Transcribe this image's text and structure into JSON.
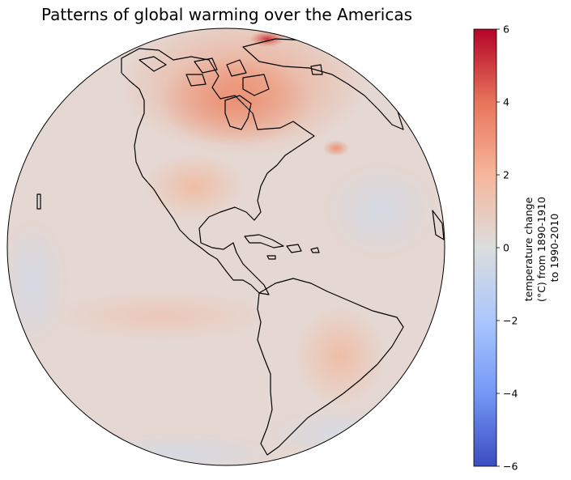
{
  "title": "Patterns of global warming over the Americas",
  "colorbar": {
    "label_lines": [
      "temperature change",
      "(°C) from 1890-1910",
      "to 1990-2010"
    ],
    "ticks": [
      {
        "value": 6,
        "label": "6"
      },
      {
        "value": 4,
        "label": "4"
      },
      {
        "value": 2,
        "label": "2"
      },
      {
        "value": 0,
        "label": "0"
      },
      {
        "value": -2,
        "label": "−2"
      },
      {
        "value": -4,
        "label": "−4"
      },
      {
        "value": -6,
        "label": "−6"
      }
    ],
    "range": [
      -6,
      6
    ],
    "colormap": "coolwarm",
    "stops": [
      "#3b4cc0",
      "#7597f6",
      "#aac7fd",
      "#dcdddd",
      "#f6b69b",
      "#e7745b",
      "#b40426"
    ]
  },
  "chart_data": {
    "type": "heatmap",
    "projection": "orthographic",
    "title": "Patterns of global warming over the Americas",
    "colorbar_label": "temperature change (°C) from 1890-1910 to 1990-2010",
    "vmin": -6,
    "vmax": 6,
    "colormap": "coolwarm",
    "features": [
      "coastlines"
    ]
  }
}
